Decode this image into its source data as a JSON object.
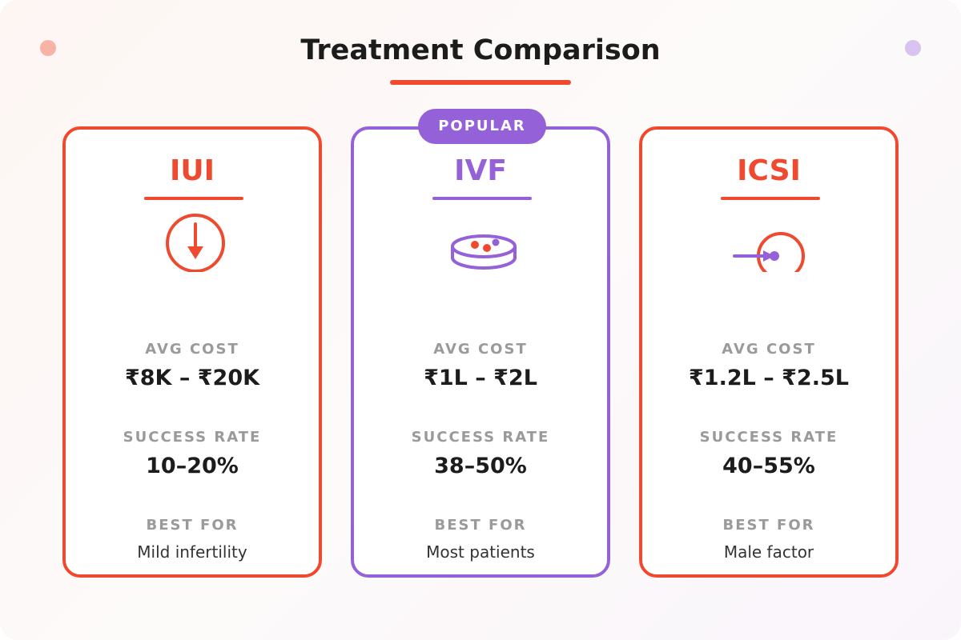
{
  "title": "Treatment Comparison",
  "colors": {
    "accent_orange": "#ef4a2f",
    "accent_purple": "#9461d9",
    "decor_dot_left": "#f7b4a6",
    "decor_dot_right": "#d8c4ef"
  },
  "labels": {
    "cost": "AVG COST",
    "rate": "SUCCESS RATE",
    "best": "BEST FOR"
  },
  "cards": [
    {
      "name": "IUI",
      "icon": "arrow-down-circle-icon",
      "color": "#ef4a2f",
      "cost": "₹8K – ₹20K",
      "success_rate": "10–20%",
      "best_for": "Mild infertility"
    },
    {
      "name": "IVF",
      "icon": "petri-dish-icon",
      "color": "#9461d9",
      "badge": "POPULAR",
      "cost": "₹1L – ₹2L",
      "success_rate": "38–50%",
      "best_for": "Most patients"
    },
    {
      "name": "ICSI",
      "icon": "injection-circle-icon",
      "color": "#ef4a2f",
      "cost": "₹1.2L – ₹2.5L",
      "success_rate": "40–55%",
      "best_for": "Male factor"
    }
  ]
}
